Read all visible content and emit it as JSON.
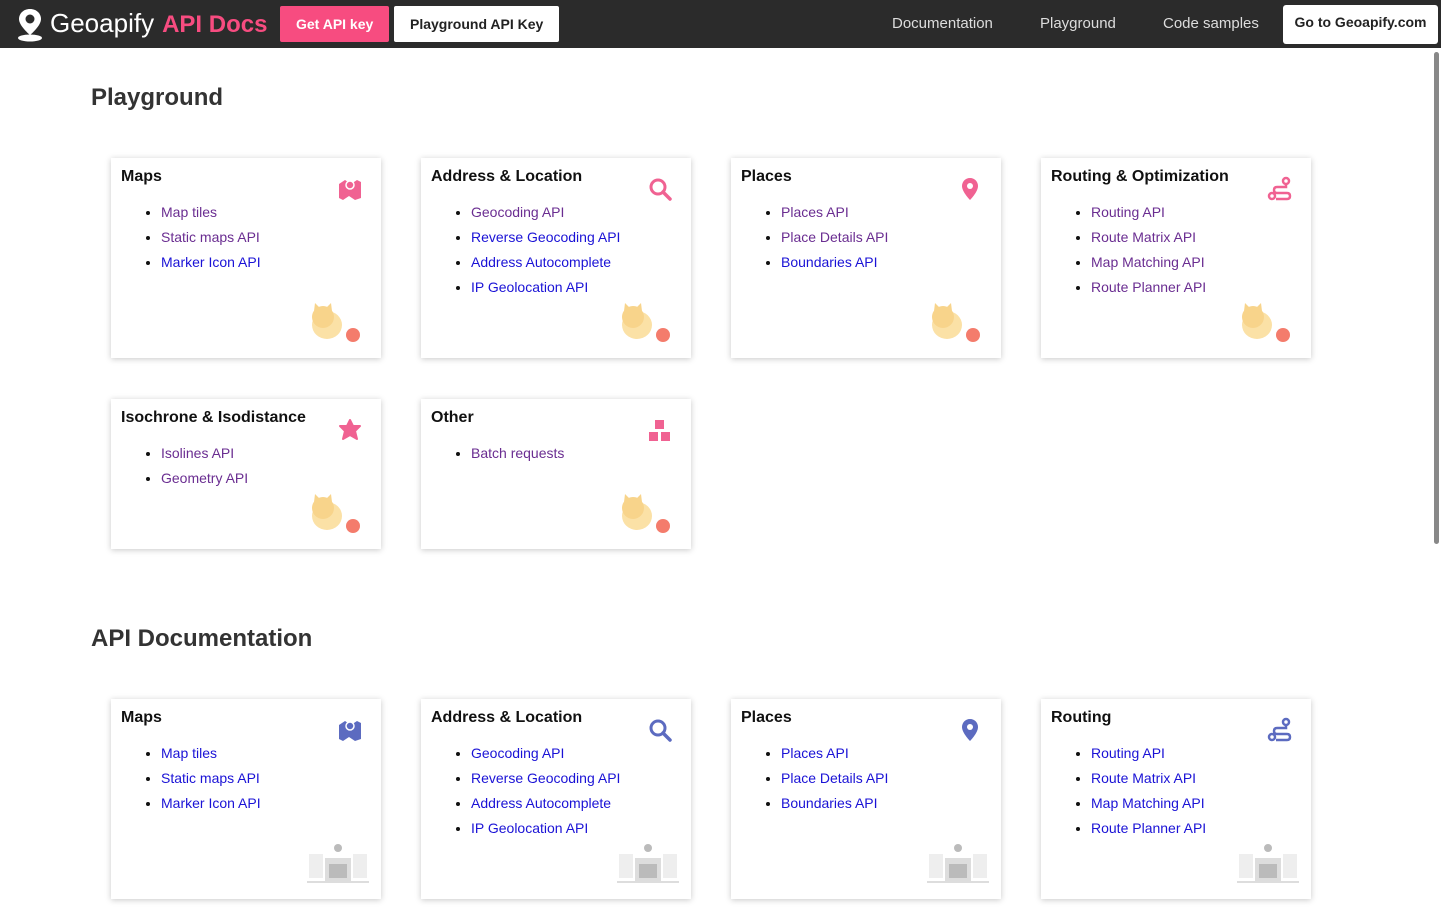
{
  "header": {
    "logo": "Geoapify",
    "logo_suffix": "API Docs",
    "buttons": [
      "Get API key",
      "Playground API Key"
    ],
    "nav": [
      "Documentation",
      "Playground",
      "Code samples"
    ],
    "cta": "Go to Geoapify.com"
  },
  "sections": [
    {
      "title": "Playground",
      "cards": [
        {
          "title": "Maps",
          "links": [
            {
              "text": "Map tiles",
              "visited": true
            },
            {
              "text": "Static maps API",
              "visited": true
            },
            {
              "text": "Marker Icon API",
              "visited": false
            }
          ]
        },
        {
          "title": "Address & Location",
          "links": [
            {
              "text": "Geocoding API",
              "visited": true
            },
            {
              "text": "Reverse Geocoding API",
              "visited": false
            },
            {
              "text": "Address Autocomplete",
              "visited": false
            },
            {
              "text": "IP Geolocation API",
              "visited": false
            }
          ]
        },
        {
          "title": "Places",
          "links": [
            {
              "text": "Places API",
              "visited": true
            },
            {
              "text": "Place Details API",
              "visited": true
            },
            {
              "text": "Boundaries API",
              "visited": false
            }
          ]
        },
        {
          "title": "Routing & Optimization",
          "links": [
            {
              "text": "Routing API",
              "visited": true
            },
            {
              "text": "Route Matrix API",
              "visited": true
            },
            {
              "text": "Map Matching API",
              "visited": true
            },
            {
              "text": "Route Planner API",
              "visited": true
            }
          ]
        },
        {
          "title": "Isochrone & Isodistance",
          "links": [
            {
              "text": "Isolines API",
              "visited": true
            },
            {
              "text": "Geometry API",
              "visited": true
            }
          ]
        },
        {
          "title": "Other",
          "links": [
            {
              "text": "Batch requests",
              "visited": true
            }
          ]
        }
      ]
    },
    {
      "title": "API Documentation",
      "cards": [
        {
          "title": "Maps",
          "links": [
            {
              "text": "Map tiles",
              "visited": false
            },
            {
              "text": "Static maps API",
              "visited": false
            },
            {
              "text": "Marker Icon API",
              "visited": false
            }
          ]
        },
        {
          "title": "Address & Location",
          "links": [
            {
              "text": "Geocoding API",
              "visited": false
            },
            {
              "text": "Reverse Geocoding API",
              "visited": false
            },
            {
              "text": "Address Autocomplete",
              "visited": false
            },
            {
              "text": "IP Geolocation API",
              "visited": false
            }
          ]
        },
        {
          "title": "Places",
          "links": [
            {
              "text": "Places API",
              "visited": false
            },
            {
              "text": "Place Details API",
              "visited": false
            },
            {
              "text": "Boundaries API",
              "visited": false
            }
          ]
        },
        {
          "title": "Routing",
          "links": [
            {
              "text": "Routing API",
              "visited": false
            },
            {
              "text": "Route Matrix API",
              "visited": false
            },
            {
              "text": "Map Matching API",
              "visited": false
            },
            {
              "text": "Route Planner API",
              "visited": false
            }
          ]
        }
      ]
    }
  ]
}
